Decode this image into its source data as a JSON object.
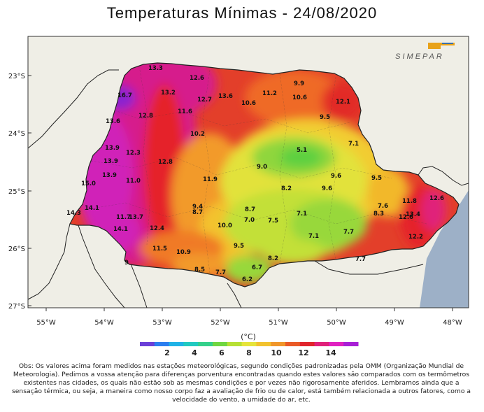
{
  "title": "Temperaturas Mínimas - 24/08/2020",
  "logo_text": "SIMEPAR",
  "lat_labels": [
    "23°S",
    "24°S",
    "25°S",
    "26°S",
    "27°S"
  ],
  "lon_labels": [
    "55°W",
    "54°W",
    "53°W",
    "52°W",
    "51°W",
    "50°W",
    "49°W",
    "48°W"
  ],
  "colorbar": {
    "unit": "(°C)",
    "tick_labels": [
      "2",
      "4",
      "6",
      "8",
      "10",
      "12",
      "14"
    ],
    "colors": [
      "#6a3fd8",
      "#2a7ef0",
      "#1fb2e6",
      "#20c9c0",
      "#33d08a",
      "#6fd640",
      "#b6e034",
      "#e6e43a",
      "#f2c22e",
      "#f0962a",
      "#ea5a26",
      "#e0242c",
      "#e0207a",
      "#e020c0",
      "#a81fd6"
    ]
  },
  "stations": [
    {
      "v": "13.3"
    },
    {
      "v": "12.6"
    },
    {
      "v": "16.7"
    },
    {
      "v": "13.2"
    },
    {
      "v": "12.7"
    },
    {
      "v": "13.6"
    },
    {
      "v": "11.2"
    },
    {
      "v": "9.9"
    },
    {
      "v": "10.6"
    },
    {
      "v": "10.6"
    },
    {
      "v": "12.1"
    },
    {
      "v": "13.6"
    },
    {
      "v": "12.8"
    },
    {
      "v": "11.6"
    },
    {
      "v": "9.5"
    },
    {
      "v": "10.2"
    },
    {
      "v": "7.1"
    },
    {
      "v": "13.9"
    },
    {
      "v": "12.3"
    },
    {
      "v": "5.1"
    },
    {
      "v": "13.9"
    },
    {
      "v": "12.8"
    },
    {
      "v": "9.0"
    },
    {
      "v": "13.9"
    },
    {
      "v": "9.6"
    },
    {
      "v": "9.5"
    },
    {
      "v": "11.9"
    },
    {
      "v": "15.0"
    },
    {
      "v": "11.0"
    },
    {
      "v": "8.2"
    },
    {
      "v": "9.6"
    },
    {
      "v": "12.6"
    },
    {
      "v": "14.1"
    },
    {
      "v": "11.8"
    },
    {
      "v": "14.3"
    },
    {
      "v": "9.4"
    },
    {
      "v": "8.7"
    },
    {
      "v": "8.7"
    },
    {
      "v": "7.6"
    },
    {
      "v": "8.3"
    },
    {
      "v": "13.4"
    },
    {
      "v": "11.7"
    },
    {
      "v": "13.7"
    },
    {
      "v": "7.0"
    },
    {
      "v": "7.5"
    },
    {
      "v": "7.1"
    },
    {
      "v": "12.6"
    },
    {
      "v": "14.1"
    },
    {
      "v": "12.4"
    },
    {
      "v": "10.0"
    },
    {
      "v": "7.1"
    },
    {
      "v": "7.7"
    },
    {
      "v": "12.2"
    },
    {
      "v": "11.5"
    },
    {
      "v": "10.9"
    },
    {
      "v": "9.5"
    },
    {
      "v": "8.2"
    },
    {
      "v": "9"
    },
    {
      "v": "8.5"
    },
    {
      "v": "7.7"
    },
    {
      "v": "6.7"
    },
    {
      "v": "6.2"
    },
    {
      "v": "7.7"
    }
  ],
  "footnote": "Obs: Os valores acima foram medidos nas estações meteorológicas, segundo condições padronizadas pela OMM (Organização Mundial de Meteorologia). Pedimos a vossa atenção para diferenças porventura encontradas quando estes valores são comparados com os termômetros existentes nas cidades, os quais não estão sob as mesmas condições e por vezes não rigorosamente aferidos. Lembramos ainda que a sensação térmica, ou seja, a maneira como nosso corpo faz a avaliação de frio ou de calor, está também relacionada a outros fatores, como a velocidade do vento, a umidade do ar, etc."
}
